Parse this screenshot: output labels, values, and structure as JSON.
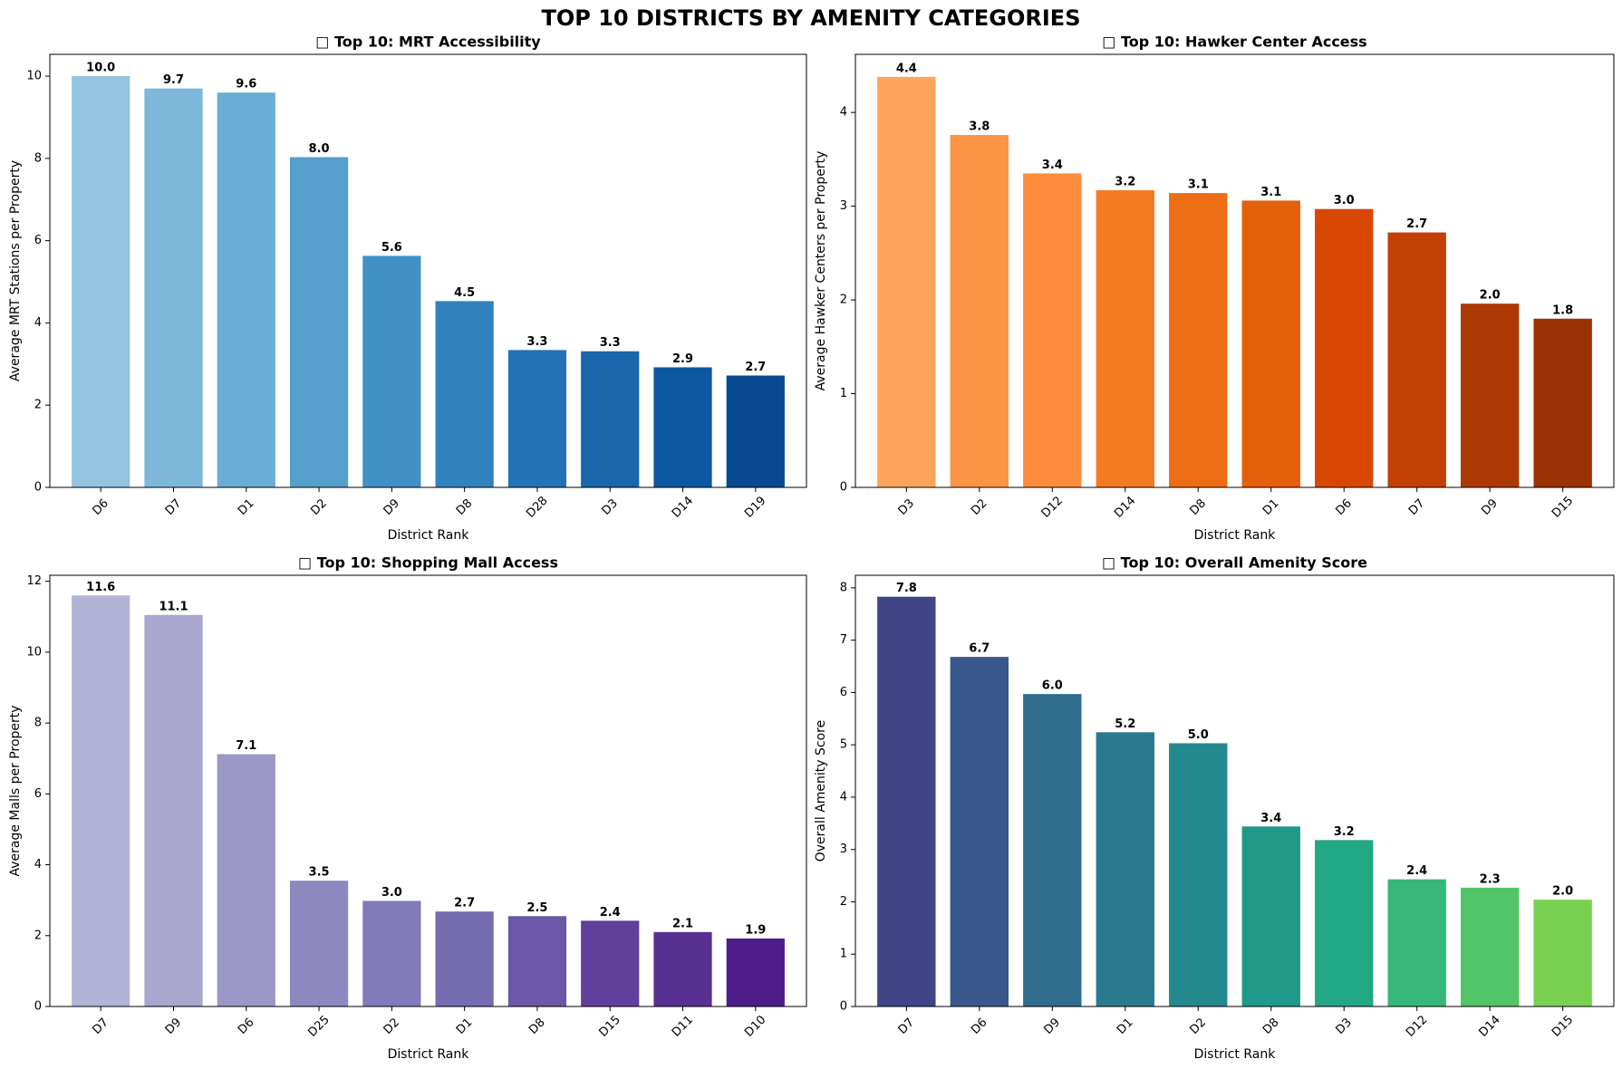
{
  "title": "TOP 10 DISTRICTS BY AMENITY CATEGORIES",
  "chart_data": [
    {
      "type": "bar",
      "title": "□ Top 10: MRT Accessibility",
      "x_label": "District Rank",
      "y_label": "Average MRT Stations per Property",
      "categories": [
        "D6",
        "D7",
        "D1",
        "D2",
        "D9",
        "D8",
        "D28",
        "D3",
        "D14",
        "D19"
      ],
      "values": [
        10.0,
        9.7,
        9.6,
        8.03,
        5.63,
        4.53,
        3.34,
        3.31,
        2.92,
        2.72
      ],
      "value_labels": [
        "10.0",
        "9.7",
        "9.6",
        "8.0",
        "5.6",
        "4.5",
        "3.3",
        "3.3",
        "2.9",
        "2.7"
      ],
      "colors": [
        "#94c4df",
        "#7db8da",
        "#6aaed6",
        "#559fcd",
        "#4191c6",
        "#3282be",
        "#2372b6",
        "#1966ad",
        "#0e58a2",
        "#084a91"
      ],
      "ylim": [
        0,
        10.53
      ],
      "yticks": [
        0,
        2,
        4,
        6,
        8,
        10
      ]
    },
    {
      "type": "bar",
      "title": "□ Top 10: Hawker Center Access",
      "x_label": "District Rank",
      "y_label": "Average Hawker Centers per Property",
      "categories": [
        "D3",
        "D2",
        "D12",
        "D14",
        "D8",
        "D1",
        "D6",
        "D7",
        "D9",
        "D15"
      ],
      "values": [
        4.38,
        3.76,
        3.35,
        3.17,
        3.14,
        3.06,
        2.97,
        2.72,
        1.96,
        1.8
      ],
      "value_labels": [
        "4.4",
        "3.8",
        "3.4",
        "3.2",
        "3.1",
        "3.1",
        "3.0",
        "2.7",
        "2.0",
        "1.8"
      ],
      "colors": [
        "#fda55d",
        "#fd9546",
        "#fd8c3b",
        "#f57a24",
        "#ec6d13",
        "#e55f0c",
        "#d94801",
        "#c24002",
        "#ac3803",
        "#9b3203"
      ],
      "ylim": [
        0,
        4.62
      ],
      "yticks": [
        0,
        1,
        2,
        3,
        4
      ]
    },
    {
      "type": "bar",
      "title": "□ Top 10: Shopping Mall Access",
      "x_label": "District Rank",
      "y_label": "Average Malls per Property",
      "categories": [
        "D7",
        "D9",
        "D6",
        "D25",
        "D2",
        "D1",
        "D8",
        "D15",
        "D11",
        "D10"
      ],
      "values": [
        11.6,
        11.05,
        7.12,
        3.55,
        2.98,
        2.68,
        2.55,
        2.42,
        2.1,
        1.92
      ],
      "value_labels": [
        "11.6",
        "11.1",
        "7.1",
        "3.5",
        "3.0",
        "2.7",
        "2.5",
        "2.4",
        "2.1",
        "1.9"
      ],
      "colors": [
        "#b4b4d7",
        "#a9a6cf",
        "#9b98c8",
        "#8d89c0",
        "#817bb9",
        "#766cb0",
        "#6b58a6",
        "#61409b",
        "#573092",
        "#4c1d8b"
      ],
      "ylim": [
        0,
        12.17
      ],
      "yticks": [
        0,
        2,
        4,
        6,
        8,
        10,
        12
      ]
    },
    {
      "type": "bar",
      "title": "□ Top 10: Overall Amenity Score",
      "x_label": "District Rank",
      "y_label": "Overall Amenity Score",
      "categories": [
        "D7",
        "D6",
        "D9",
        "D1",
        "D2",
        "D8",
        "D3",
        "D12",
        "D14",
        "D15"
      ],
      "values": [
        7.83,
        6.68,
        5.97,
        5.24,
        5.03,
        3.44,
        3.18,
        2.43,
        2.27,
        2.04
      ],
      "value_labels": [
        "7.8",
        "6.7",
        "6.0",
        "5.2",
        "5.0",
        "3.4",
        "3.2",
        "2.4",
        "2.3",
        "2.0"
      ],
      "colors": [
        "#414487",
        "#38588c",
        "#2f6c8e",
        "#297a8e",
        "#23898e",
        "#1f9a8a",
        "#22a884",
        "#35b779",
        "#52c569",
        "#7ad151"
      ],
      "ylim": [
        0,
        8.24
      ],
      "yticks": [
        0,
        1,
        2,
        3,
        4,
        5,
        6,
        7,
        8
      ]
    }
  ]
}
